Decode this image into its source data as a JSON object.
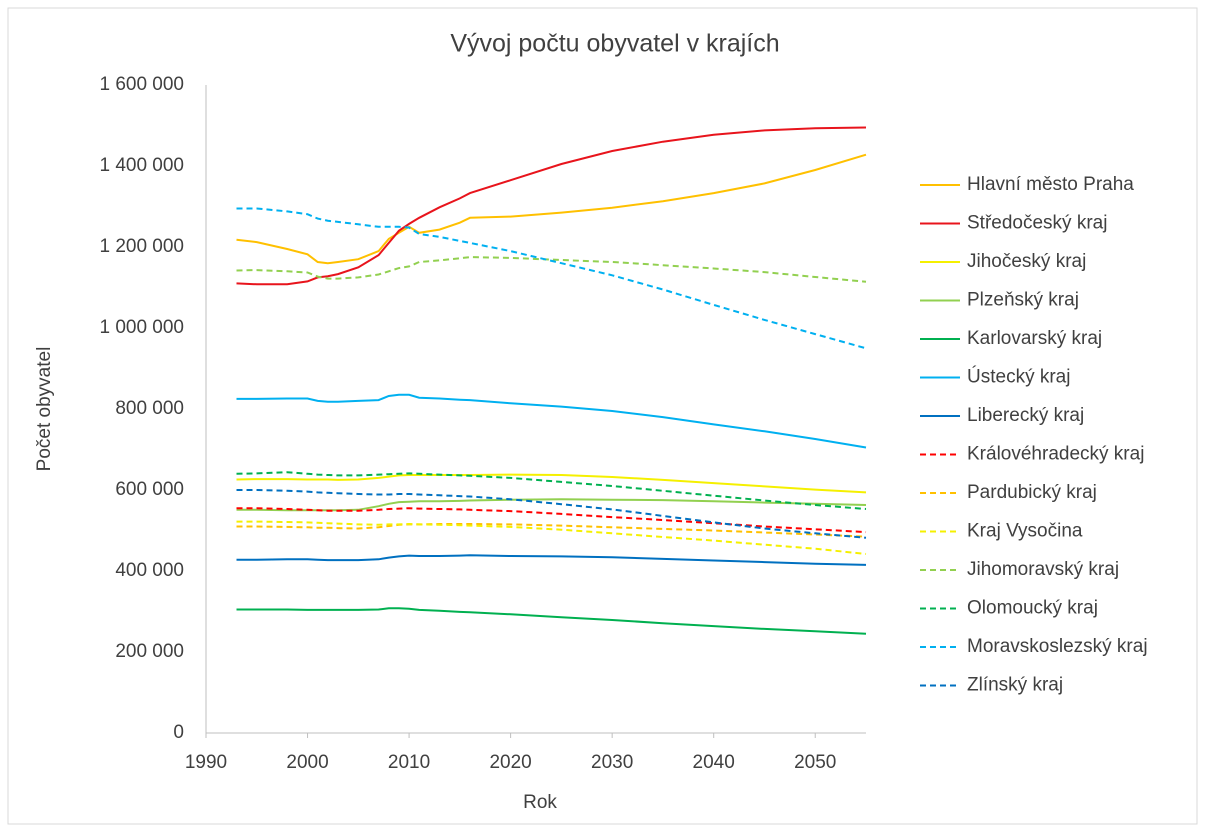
{
  "chart_data": {
    "type": "line",
    "title": "Vývoj počtu obyvatel v krajích",
    "x_label": "Rok",
    "y_label": "Počet obyvatel",
    "x": [
      1993,
      1995,
      1998,
      2000,
      2001,
      2002,
      2003,
      2005,
      2007,
      2008,
      2009,
      2010,
      2011,
      2013,
      2015,
      2016,
      2020,
      2025,
      2030,
      2035,
      2040,
      2045,
      2050,
      2055
    ],
    "xlim": [
      1990,
      2055
    ],
    "xticks": [
      1990,
      2000,
      2010,
      2020,
      2030,
      2040,
      2050
    ],
    "ylim": [
      0,
      1600000
    ],
    "yticks": [
      0,
      {
        "value": 200000,
        "label": "200 000"
      },
      {
        "value": 400000,
        "label": "400 000"
      },
      {
        "value": 600000,
        "label": "600 000"
      },
      {
        "value": 800000,
        "label": "800 000"
      },
      {
        "value": 1000000,
        "label": "1 000 000"
      },
      {
        "value": 1200000,
        "label": "1 200 000"
      },
      {
        "value": 1400000,
        "label": "1 400 000"
      },
      {
        "value": 1600000,
        "label": "1 600 000"
      }
    ],
    "grid": false,
    "legend": "right",
    "series": [
      {
        "name": "Hlavní město Praha",
        "color": "#ffc000",
        "dashed": false,
        "values": [
          1218000,
          1212000,
          1195000,
          1182000,
          1163000,
          1160000,
          1163000,
          1170000,
          1190000,
          1220000,
          1235000,
          1250000,
          1235000,
          1243000,
          1260000,
          1272000,
          1275000,
          1285000,
          1297000,
          1313000,
          1333000,
          1357000,
          1390000,
          1428000
        ]
      },
      {
        "name": "Středočeský kraj",
        "color": "#e8141c",
        "dashed": false,
        "values": [
          1110000,
          1108000,
          1108000,
          1115000,
          1125000,
          1128000,
          1133000,
          1150000,
          1180000,
          1210000,
          1240000,
          1257000,
          1272000,
          1298000,
          1320000,
          1333000,
          1365000,
          1405000,
          1437000,
          1460000,
          1477000,
          1488000,
          1493000,
          1495000
        ]
      },
      {
        "name": "Jihočeský kraj",
        "color": "#f5f000",
        "dashed": false,
        "values": [
          626000,
          627000,
          627000,
          626000,
          626000,
          626000,
          625000,
          626000,
          630000,
          633000,
          636000,
          637000,
          637000,
          637000,
          637000,
          637000,
          638000,
          637000,
          632000,
          625000,
          617000,
          609000,
          601000,
          594000
        ]
      },
      {
        "name": "Plzeňský kraj",
        "color": "#92d050",
        "dashed": false,
        "values": [
          551000,
          551000,
          550000,
          550000,
          550000,
          550000,
          550000,
          551000,
          560000,
          566000,
          570000,
          571000,
          572000,
          572000,
          573000,
          574000,
          576000,
          577000,
          576000,
          575000,
          572000,
          569000,
          566000,
          563000
        ]
      },
      {
        "name": "Karlovarský kraj",
        "color": "#00b050",
        "dashed": false,
        "values": [
          305000,
          305000,
          305000,
          304000,
          304000,
          304000,
          304000,
          304000,
          305000,
          308000,
          308000,
          307000,
          304000,
          302000,
          299000,
          298000,
          293000,
          286000,
          279000,
          271000,
          264000,
          257000,
          251000,
          245000
        ]
      },
      {
        "name": "Ústecký kraj",
        "color": "#00b0f0",
        "dashed": false,
        "values": [
          825000,
          825000,
          826000,
          826000,
          820000,
          818000,
          818000,
          820000,
          822000,
          832000,
          835000,
          835000,
          828000,
          826000,
          823000,
          822000,
          814000,
          806000,
          795000,
          780000,
          762000,
          745000,
          726000,
          705000
        ]
      },
      {
        "name": "Liberecký kraj",
        "color": "#0070c0",
        "dashed": false,
        "values": [
          428000,
          428000,
          429000,
          429000,
          428000,
          427000,
          427000,
          427000,
          429000,
          433000,
          436000,
          438000,
          437000,
          437000,
          438000,
          439000,
          437000,
          436000,
          434000,
          430000,
          426000,
          422000,
          418000,
          415000
        ]
      },
      {
        "name": "Královéhradecký kraj",
        "color": "#ff0000",
        "dashed": true,
        "values": [
          555000,
          555000,
          553000,
          551000,
          550000,
          549000,
          549000,
          549000,
          551000,
          553000,
          554000,
          555000,
          554000,
          553000,
          552000,
          551000,
          548000,
          541000,
          533000,
          526000,
          518000,
          510000,
          503000,
          496000
        ]
      },
      {
        "name": "Pardubický kraj",
        "color": "#ffc000",
        "dashed": true,
        "values": [
          510000,
          510000,
          509000,
          508000,
          507000,
          507000,
          506000,
          505000,
          508000,
          511000,
          514000,
          515000,
          515000,
          516000,
          516000,
          516000,
          515000,
          512000,
          508000,
          504000,
          500000,
          495000,
          490000,
          485000
        ]
      },
      {
        "name": "Kraj Vysočina",
        "color": "#f5f000",
        "dashed": true,
        "values": [
          522000,
          522000,
          521000,
          520000,
          519000,
          518000,
          517000,
          515000,
          514000,
          515000,
          515000,
          516000,
          515000,
          514000,
          513000,
          512000,
          509000,
          502000,
          493000,
          484000,
          475000,
          465000,
          455000,
          442000
        ]
      },
      {
        "name": "Jihomoravský kraj",
        "color": "#92d050",
        "dashed": true,
        "values": [
          1142000,
          1143000,
          1140000,
          1137000,
          1127000,
          1122000,
          1122000,
          1125000,
          1132000,
          1140000,
          1148000,
          1152000,
          1163000,
          1167000,
          1172000,
          1175000,
          1173000,
          1168000,
          1163000,
          1155000,
          1147000,
          1138000,
          1126000,
          1114000
        ]
      },
      {
        "name": "Olomoucký kraj",
        "color": "#00b050",
        "dashed": true,
        "values": [
          640000,
          641000,
          644000,
          640000,
          638000,
          637000,
          636000,
          636000,
          638000,
          639000,
          640000,
          641000,
          640000,
          638000,
          636000,
          635000,
          630000,
          620000,
          610000,
          598000,
          586000,
          574000,
          563000,
          553000
        ]
      },
      {
        "name": "Moravskoslezský kraj",
        "color": "#00b0f0",
        "dashed": true,
        "values": [
          1295000,
          1295000,
          1288000,
          1281000,
          1270000,
          1265000,
          1262000,
          1256000,
          1250000,
          1250000,
          1250000,
          1248000,
          1232000,
          1225000,
          1215000,
          1210000,
          1190000,
          1160000,
          1130000,
          1095000,
          1057000,
          1020000,
          985000,
          950000
        ]
      },
      {
        "name": "Zlínský kraj",
        "color": "#0070c0",
        "dashed": true,
        "values": [
          600000,
          600000,
          598000,
          596000,
          594000,
          593000,
          592000,
          590000,
          589000,
          589000,
          590000,
          590000,
          589000,
          587000,
          585000,
          584000,
          577000,
          565000,
          552000,
          536000,
          520000,
          505000,
          493000,
          482000
        ]
      }
    ]
  }
}
